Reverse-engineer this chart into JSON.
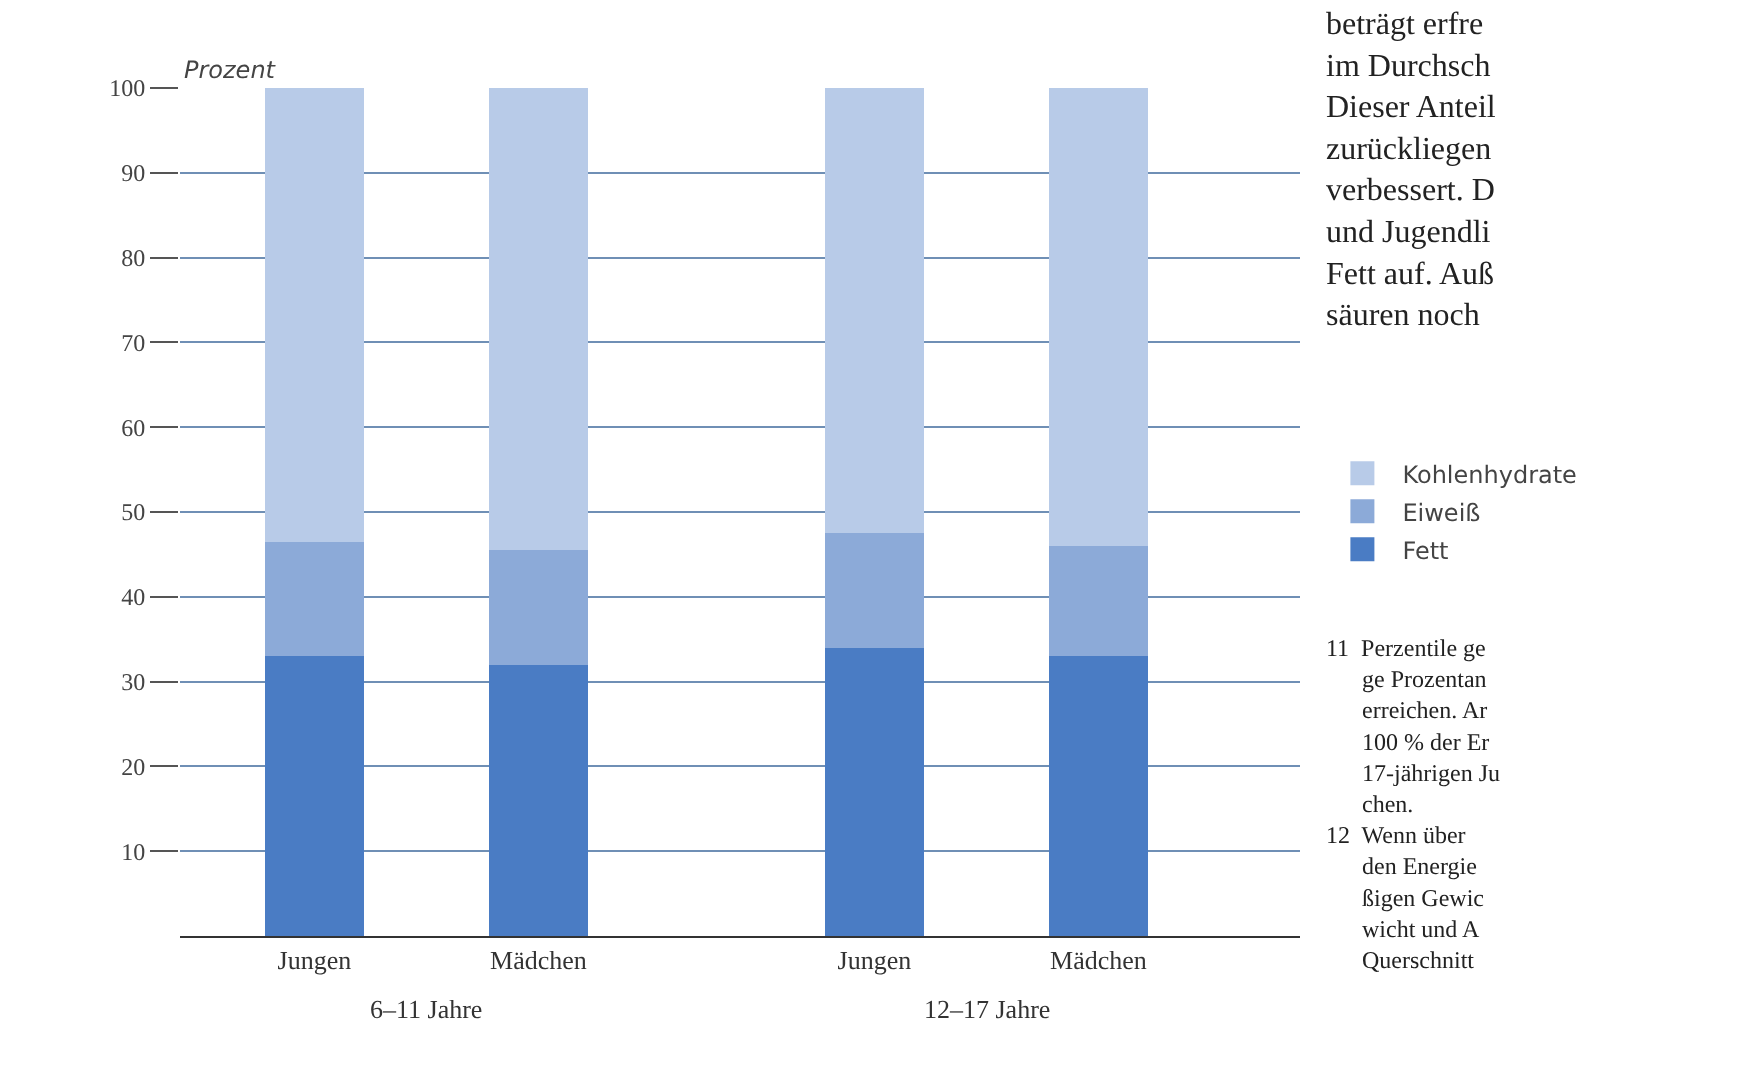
{
  "chart_data": {
    "type": "bar",
    "stacked": true,
    "ylabel": "Prozent",
    "categories": [
      "Jungen",
      "Mädchen",
      "Jungen",
      "Mädchen"
    ],
    "series": [
      {
        "name": "Fett",
        "color": "#4a7cc4",
        "values": [
          33,
          32,
          34,
          33
        ]
      },
      {
        "name": "Eiweiß",
        "color": "#8caad8",
        "values": [
          13.5,
          13.5,
          13.5,
          13
        ]
      },
      {
        "name": "Kohlenhydrate",
        "color": "#b8cbe8",
        "values": [
          53.5,
          54.5,
          52.5,
          54
        ]
      }
    ],
    "ylim": [
      0,
      100
    ],
    "yticks": [
      10,
      20,
      30,
      40,
      50,
      60,
      70,
      80,
      90,
      100
    ],
    "grid": "y",
    "legend": "right",
    "annotations": [
      "6–11 Jahre",
      "12–17 Jahre",
      "beträgt erfre\nim Durchsch\nDieser Anteil\nzurückliegen\nverbessert. D\nund Jugendli\nFett auf. Auß\nsäuren noch",
      "11  Perzentile ge\n      ge Prozentan\n      erreichen. Ar\n      100 % der Er\n      17-jährigen Ju\n      chen.\n12  Wenn über\n      den Energie\n      ßigen Gewic\n      wicht und A\n      Querschnitt"
    ]
  }
}
